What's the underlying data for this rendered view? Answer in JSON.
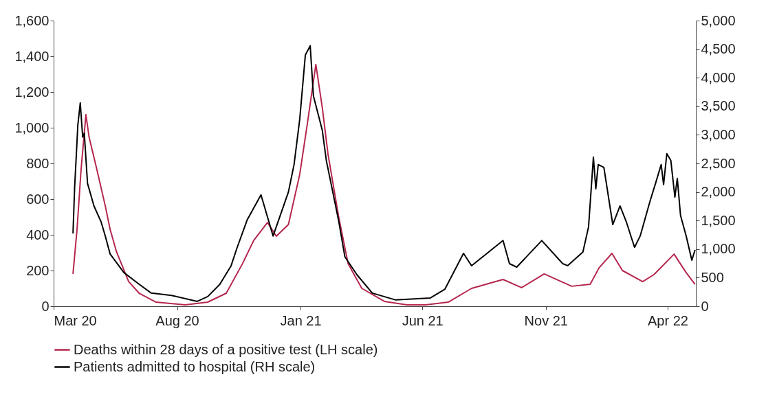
{
  "chart_data": {
    "type": "line",
    "xlim": [
      "2020-03-01",
      "2022-05-06"
    ],
    "xticks": [
      {
        "value": "2020-03-01",
        "label": "Mar 20"
      },
      {
        "value": "2020-08-01",
        "label": "Aug 20"
      },
      {
        "value": "2021-01-01",
        "label": "Jan 21"
      },
      {
        "value": "2021-06-01",
        "label": "Jun 21"
      },
      {
        "value": "2021-11-01",
        "label": "Nov 21"
      },
      {
        "value": "2022-04-01",
        "label": "Apr 22"
      }
    ],
    "ylim": [
      0,
      1600
    ],
    "yticks": [
      0,
      200,
      400,
      600,
      800,
      {
        "value": 1000,
        "label": "1,000"
      },
      {
        "value": 1200,
        "label": "1,200"
      },
      {
        "value": 1400,
        "label": "1,400"
      },
      {
        "value": 1600,
        "label": "1,600"
      }
    ],
    "y2lim": [
      0,
      5000
    ],
    "y2ticks": [
      0,
      500,
      {
        "value": 1000,
        "label": "1,000"
      },
      {
        "value": 1500,
        "label": "1,500"
      },
      {
        "value": 2000,
        "label": "2,000"
      },
      {
        "value": 2500,
        "label": "2,500"
      },
      {
        "value": 3000,
        "label": "3,000"
      },
      {
        "value": 3500,
        "label": "3,500"
      },
      {
        "value": 4000,
        "label": "4,000"
      },
      {
        "value": 4500,
        "label": "4,500"
      },
      {
        "value": 5000,
        "label": "5,000"
      }
    ],
    "grid": false,
    "legend": "bottom",
    "marker": "none",
    "line_style": "solid",
    "series": [
      {
        "name": "Deaths within 28 days of a positive test (LH scale)",
        "color": "#b5264d",
        "x": [
          "2020-03-25",
          "2020-03-30",
          "2020-04-04",
          "2020-04-10",
          "2020-04-14",
          "2020-04-23",
          "2020-05-04",
          "2020-05-10",
          "2020-05-18",
          "2020-06-02",
          "2020-06-15",
          "2020-07-06",
          "2020-08-11",
          "2020-09-08",
          "2020-10-01",
          "2020-10-21",
          "2020-11-04",
          "2020-11-21",
          "2020-12-02",
          "2020-12-17",
          "2020-12-31",
          "2021-01-09",
          "2021-01-20",
          "2021-01-28",
          "2021-02-04",
          "2021-02-17",
          "2021-03-01",
          "2021-03-18",
          "2021-04-15",
          "2021-05-13",
          "2021-06-05",
          "2021-07-03",
          "2021-08-01",
          "2021-09-09",
          "2021-10-02",
          "2021-10-30",
          "2021-12-03",
          "2021-12-26",
          "2022-01-06",
          "2022-01-22",
          "2022-02-04",
          "2022-03-01",
          "2022-03-15",
          "2022-04-09",
          "2022-04-24",
          "2022-05-05"
        ],
        "values": [
          181,
          430,
          765,
          1073,
          946,
          777,
          562,
          431,
          304,
          138,
          73,
          23,
          8,
          23,
          73,
          238,
          369,
          469,
          392,
          458,
          738,
          1008,
          1354,
          1112,
          854,
          508,
          238,
          100,
          27,
          8,
          8,
          23,
          100,
          150,
          104,
          181,
          112,
          123,
          215,
          296,
          200,
          138,
          177,
          292,
          188,
          123
        ]
      },
      {
        "name": "Patients admitted to hospital (RH scale)",
        "color": "#000000",
        "axis": "y2",
        "x": [
          "2020-03-25",
          "2020-03-27",
          "2020-03-31",
          "2020-04-03",
          "2020-04-06",
          "2020-04-08",
          "2020-04-12",
          "2020-04-20",
          "2020-04-29",
          "2020-05-04",
          "2020-05-10",
          "2020-05-27",
          "2020-06-15",
          "2020-06-30",
          "2020-07-25",
          "2020-08-26",
          "2020-09-08",
          "2020-09-23",
          "2020-10-07",
          "2020-10-14",
          "2020-10-27",
          "2020-11-13",
          "2020-11-28",
          "2020-12-17",
          "2020-12-24",
          "2020-12-31",
          "2021-01-07",
          "2021-01-13",
          "2021-01-17",
          "2021-01-28",
          "2021-02-02",
          "2021-02-17",
          "2021-02-25",
          "2021-03-12",
          "2021-03-31",
          "2021-04-29",
          "2021-06-11",
          "2021-06-29",
          "2021-07-22",
          "2021-08-01",
          "2021-09-09",
          "2021-09-17",
          "2021-09-26",
          "2021-10-27",
          "2021-11-22",
          "2021-11-28",
          "2021-12-17",
          "2021-12-24",
          "2021-12-30",
          "2022-01-02",
          "2022-01-05",
          "2022-01-12",
          "2022-01-23",
          "2022-02-01",
          "2022-02-09",
          "2022-02-19",
          "2022-02-26",
          "2022-03-10",
          "2022-03-17",
          "2022-03-24",
          "2022-03-27",
          "2022-03-31",
          "2022-04-05",
          "2022-04-10",
          "2022-04-13",
          "2022-04-17",
          "2022-04-24",
          "2022-05-01",
          "2022-05-05"
        ],
        "values": [
          1275,
          2070,
          3170,
          3560,
          2960,
          3030,
          2150,
          1755,
          1470,
          1230,
          915,
          590,
          385,
          230,
          190,
          85,
          170,
          385,
          710,
          1010,
          1515,
          1950,
          1230,
          2000,
          2480,
          3270,
          4400,
          4560,
          3680,
          3080,
          2550,
          1515,
          865,
          550,
          230,
          110,
          145,
          300,
          925,
          710,
          1150,
          745,
          685,
          1150,
          745,
          710,
          950,
          1390,
          2610,
          2055,
          2480,
          2430,
          1430,
          1755,
          1470,
          1030,
          1230,
          1830,
          2150,
          2480,
          2130,
          2670,
          2550,
          1910,
          2240,
          1590,
          1230,
          805,
          985
        ]
      }
    ]
  }
}
